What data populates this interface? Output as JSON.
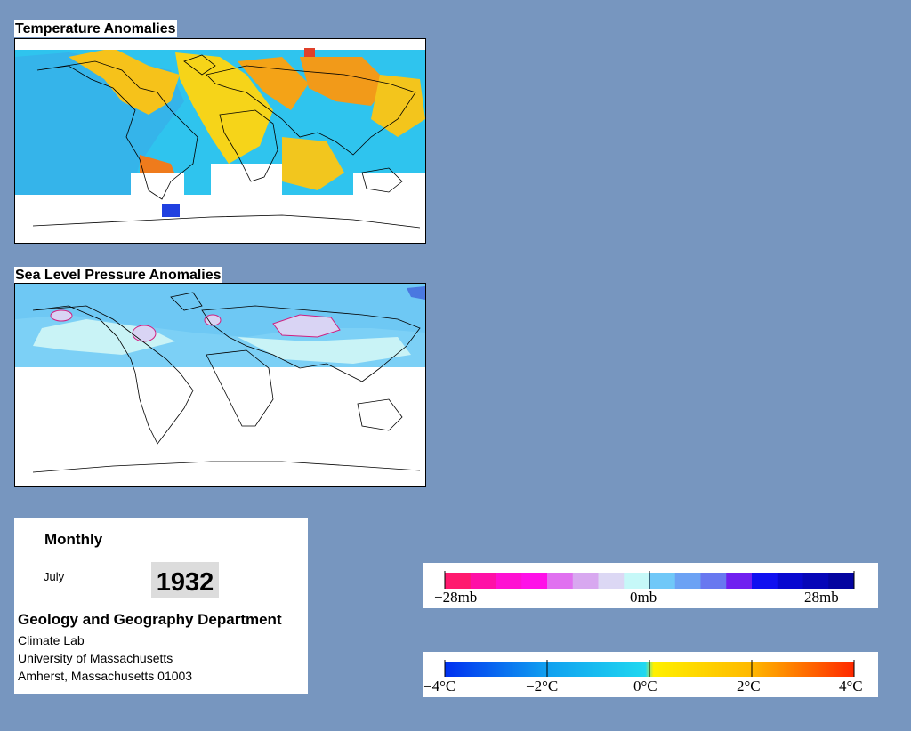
{
  "maps": {
    "temperature": {
      "title": "Temperature Anomalies"
    },
    "pressure": {
      "title": "Sea Level Pressure Anomalies"
    }
  },
  "info": {
    "frequency": "Monthly",
    "month": "July",
    "year": "1932",
    "department": "Geology and Geography Department",
    "lab": "Climate Lab",
    "university": "University of Massachusetts",
    "address": "Amherst, Massachusetts 01003"
  },
  "legends": {
    "pressure": {
      "labels": [
        "−28mb",
        "0mb",
        "28mb"
      ],
      "colors": [
        "#ff1a6e",
        "#ff10a6",
        "#ff10d2",
        "#ff10e8",
        "#e070f0",
        "#d8a8f0",
        "#dcd8f4",
        "#c6f8f8",
        "#70c8f8",
        "#6ca2f4",
        "#6878f0",
        "#7020f0",
        "#1010f0",
        "#0808d0",
        "#0606b8",
        "#0404a0"
      ]
    },
    "temperature": {
      "labels": [
        "−4°C",
        "−2°C",
        "0°C",
        "2°C",
        "4°C"
      ],
      "colors": [
        "#0030f0",
        "#10a0f0",
        "#20d8f0",
        "#fff000",
        "#ffb800",
        "#ff8000",
        "#ff2800"
      ]
    }
  }
}
